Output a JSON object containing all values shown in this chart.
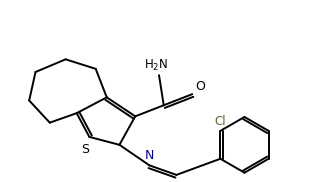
{
  "background_color": "#ffffff",
  "line_color": "#000000",
  "text_color": "#000000",
  "cl_color": "#556B2F",
  "n_color": "#00008B",
  "s_color": "#000000",
  "line_width": 1.4,
  "figsize": [
    3.18,
    1.82
  ],
  "dpi": 100,
  "xlim": [
    0,
    10
  ],
  "ylim": [
    0,
    5.7
  ]
}
